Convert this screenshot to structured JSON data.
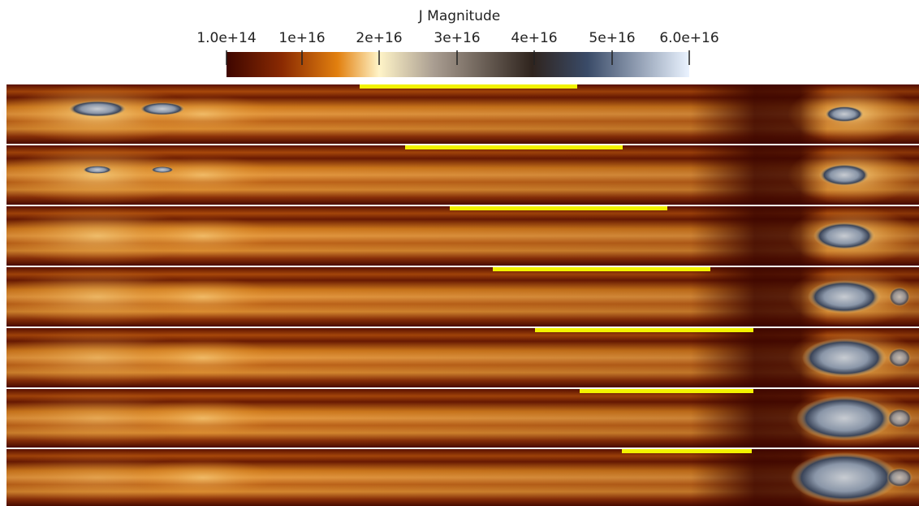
{
  "colorbar": {
    "title": "J Magnitude",
    "ticks": [
      "1.0e+14",
      "1e+16",
      "2e+16",
      "3e+16",
      "4e+16",
      "5e+16",
      "6.0e+16"
    ]
  }
}
